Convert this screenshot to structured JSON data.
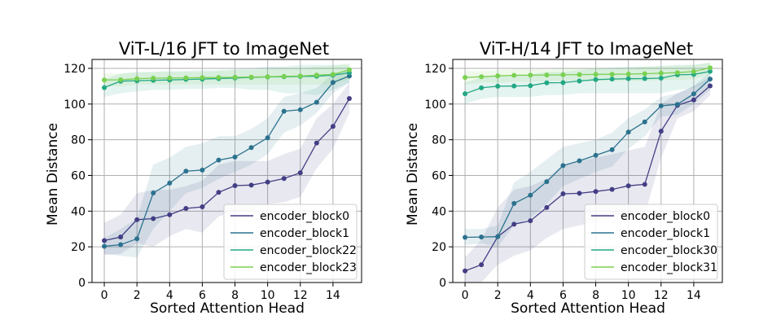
{
  "chart_data": [
    {
      "type": "line",
      "title": "ViT-L/16 JFT to ImageNet",
      "xlabel": "Sorted Attention Head",
      "ylabel": "Mean Distance",
      "xlim": [
        -0.75,
        15.75
      ],
      "ylim": [
        0,
        125
      ],
      "xticks": [
        0,
        2,
        4,
        6,
        8,
        10,
        12,
        14
      ],
      "yticks": [
        0,
        20,
        40,
        60,
        80,
        100,
        120
      ],
      "grid": true,
      "legend_position": "lower-right",
      "x": [
        0,
        1,
        2,
        3,
        4,
        5,
        6,
        7,
        8,
        9,
        10,
        11,
        12,
        13,
        14,
        15
      ],
      "series": [
        {
          "name": "encoder_block0",
          "color": "#433e85",
          "values": [
            23.5,
            25.5,
            35.2,
            35.8,
            38,
            41.5,
            42.4,
            50.5,
            54.3,
            54.6,
            56.3,
            58.3,
            61.5,
            78.2,
            87.5,
            103.1
          ],
          "band_lower": [
            15.5,
            16,
            22,
            20,
            26,
            30,
            28,
            37,
            40,
            40,
            44,
            45,
            48,
            64,
            75,
            95
          ],
          "band_upper": [
            33.5,
            38,
            50,
            52,
            52,
            54,
            57,
            66,
            68,
            68,
            68,
            72,
            75,
            92,
            100,
            112
          ]
        },
        {
          "name": "encoder_block1",
          "color": "#2b728e",
          "values": [
            20.3,
            21.2,
            24.5,
            50.2,
            55.7,
            62.4,
            63,
            68.6,
            70.3,
            75.6,
            81.1,
            96,
            96.8,
            101,
            112.1,
            115.7
          ],
          "band_lower": [
            16,
            15,
            14,
            30,
            40,
            50,
            53,
            58,
            62,
            66,
            72,
            84,
            88,
            95,
            106,
            112
          ],
          "band_upper": [
            25,
            30,
            36,
            66,
            70,
            76,
            78,
            82,
            82,
            86,
            92,
            104,
            106,
            109,
            117,
            119
          ]
        },
        {
          "name": "encoder_block22",
          "color": "#22a884",
          "values": [
            109.2,
            112.8,
            113.1,
            113.3,
            113.5,
            113.8,
            114,
            114.3,
            114.6,
            114.9,
            115.2,
            115.3,
            115.5,
            115.6,
            116.2,
            117.5
          ],
          "band_lower": [
            104,
            106,
            107,
            108,
            108,
            108.5,
            108.5,
            109,
            109,
            108,
            108,
            106,
            106,
            105,
            108,
            112
          ],
          "band_upper": [
            114,
            117,
            118,
            118,
            118.5,
            118.5,
            119,
            119,
            119.5,
            120,
            121,
            121,
            122,
            122,
            122,
            122
          ]
        },
        {
          "name": "encoder_block23",
          "color": "#7ad151",
          "values": [
            113.5,
            113.6,
            114.2,
            114.5,
            114.6,
            114.7,
            114.8,
            114.9,
            115,
            115.1,
            115.3,
            115.5,
            115.7,
            116.2,
            116.6,
            119.2
          ],
          "band_lower": [
            110,
            110,
            111,
            111,
            111,
            111,
            111,
            111,
            111,
            111,
            111,
            111,
            111,
            111,
            111,
            114
          ],
          "band_upper": [
            117,
            117,
            117.5,
            118,
            118,
            118,
            118,
            118.5,
            119,
            119,
            119.5,
            120,
            120,
            121,
            121.5,
            123
          ]
        }
      ]
    },
    {
      "type": "line",
      "title": "ViT-H/14 JFT to ImageNet",
      "xlabel": "Sorted Attention Head",
      "ylabel": "Mean Distance",
      "xlim": [
        -0.75,
        15.75
      ],
      "ylim": [
        0,
        125
      ],
      "xticks": [
        0,
        2,
        4,
        6,
        8,
        10,
        12,
        14
      ],
      "yticks": [
        0,
        20,
        40,
        60,
        80,
        100,
        120
      ],
      "grid": true,
      "legend_position": "lower-right",
      "x": [
        0,
        1,
        2,
        3,
        4,
        5,
        6,
        7,
        8,
        9,
        10,
        11,
        12,
        13,
        14,
        15
      ],
      "series": [
        {
          "name": "encoder_block0",
          "color": "#433e85",
          "values": [
            6.5,
            10,
            25.7,
            32.7,
            34.6,
            42,
            49.7,
            50,
            51,
            52.2,
            54.2,
            55,
            84.8,
            99.3,
            102.3,
            110.2
          ],
          "band_lower": [
            0,
            0,
            10,
            15,
            18,
            25,
            30,
            32,
            34,
            36,
            38,
            38,
            70,
            92,
            96,
            105
          ],
          "band_upper": [
            14,
            24,
            42,
            52,
            54,
            58,
            66,
            68,
            70,
            72,
            74,
            76,
            100,
            106,
            110,
            115
          ]
        },
        {
          "name": "encoder_block1",
          "color": "#2b728e",
          "values": [
            25.3,
            25.5,
            25.7,
            44.3,
            48.9,
            56.5,
            65.5,
            68.2,
            71.3,
            74.4,
            84.3,
            90,
            99,
            99.8,
            105.7,
            114
          ],
          "band_lower": [
            21,
            22,
            20,
            32,
            36,
            44,
            54,
            58,
            62,
            65,
            75,
            82,
            93,
            94,
            100,
            108
          ],
          "band_upper": [
            30,
            30,
            32,
            56,
            62,
            69,
            76,
            78,
            80,
            84,
            92,
            97,
            104,
            106,
            110,
            118
          ]
        },
        {
          "name": "encoder_block30",
          "color": "#22a884",
          "values": [
            105.8,
            109.1,
            110,
            110.1,
            110.3,
            111.9,
            112,
            112.9,
            113.7,
            114,
            114.2,
            114.3,
            114.5,
            116.4,
            116.6,
            118.3
          ],
          "band_lower": [
            100,
            103,
            104,
            104,
            104,
            105,
            105,
            106,
            106,
            106,
            106,
            106,
            106,
            108,
            109,
            113
          ],
          "band_upper": [
            112,
            115,
            116,
            116,
            116.5,
            118,
            118,
            119,
            120,
            120.5,
            121,
            121,
            121.5,
            122,
            122,
            123
          ]
        },
        {
          "name": "encoder_block31",
          "color": "#7ad151",
          "values": [
            114.9,
            115.3,
            115.8,
            116.1,
            116.2,
            116.3,
            116.4,
            116.5,
            116.6,
            116.7,
            116.8,
            117,
            117.3,
            117.6,
            118.2,
            120.3
          ],
          "band_lower": [
            111,
            112,
            112,
            112.5,
            112.5,
            113,
            113,
            113,
            113,
            113,
            113,
            113,
            113.5,
            113.5,
            114,
            117
          ],
          "band_upper": [
            118.5,
            118.5,
            119,
            119.5,
            119.5,
            119.5,
            120,
            120,
            120,
            120,
            120,
            121,
            121,
            121.5,
            122,
            123.5
          ]
        }
      ]
    }
  ]
}
